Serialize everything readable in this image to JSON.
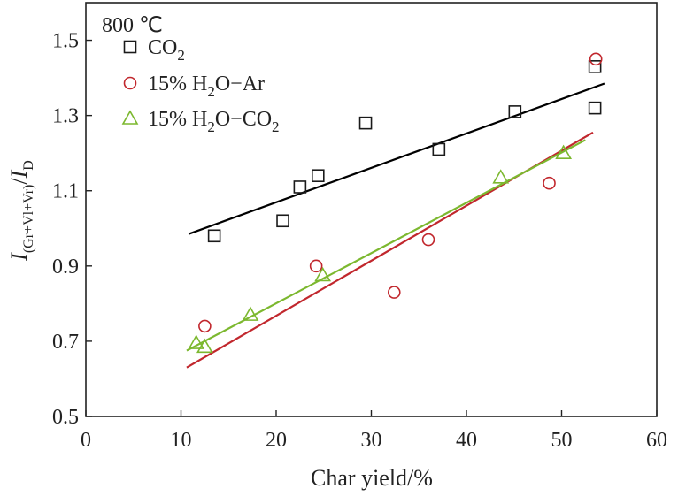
{
  "chart_data": {
    "type": "scatter",
    "annotation": "800 ℃",
    "xlabel": "Char yield/%",
    "ylabel": {
      "main": "I",
      "sub": "(Gr+Vl+Vr)",
      "sep": "/",
      "main2": "I",
      "sub2": "D"
    },
    "xlim": [
      0,
      60
    ],
    "ylim": [
      0.5,
      1.6
    ],
    "xticks": [
      0,
      10,
      20,
      30,
      40,
      50,
      60
    ],
    "yticks": [
      0.5,
      0.7,
      0.9,
      1.1,
      1.3,
      1.5
    ],
    "grid": false,
    "legend_position": "top-left",
    "series": [
      {
        "name": "CO₂",
        "name_parts": {
          "base": "CO",
          "sub": "2",
          "tail": ""
        },
        "marker": "square",
        "color": "#1a1a1a",
        "line_color": "#000000",
        "points": [
          [
            13.5,
            0.98
          ],
          [
            20.7,
            1.02
          ],
          [
            22.5,
            1.11
          ],
          [
            24.4,
            1.14
          ],
          [
            29.4,
            1.28
          ],
          [
            37.1,
            1.21
          ],
          [
            45.1,
            1.31
          ],
          [
            53.5,
            1.32
          ],
          [
            53.5,
            1.43
          ]
        ],
        "fit": [
          [
            10.8,
            0.985
          ],
          [
            54.5,
            1.385
          ]
        ]
      },
      {
        "name": "15% H₂O−Ar",
        "name_parts": {
          "base": "15% H",
          "sub": "2",
          "tail": "O−Ar"
        },
        "marker": "circle",
        "color": "#c1272d",
        "line_color": "#c1272d",
        "points": [
          [
            12.5,
            0.74
          ],
          [
            24.2,
            0.9
          ],
          [
            32.4,
            0.83
          ],
          [
            36.0,
            0.97
          ],
          [
            48.7,
            1.12
          ],
          [
            53.6,
            1.45
          ]
        ],
        "fit": [
          [
            10.6,
            0.63
          ],
          [
            53.3,
            1.255
          ]
        ]
      },
      {
        "name": "15% H₂O−CO₂",
        "name_parts": {
          "base": "15% H",
          "sub": "2",
          "tail": "O−CO",
          "sub2": "2"
        },
        "marker": "triangle",
        "color": "#7cb82f",
        "line_color": "#7cb82f",
        "points": [
          [
            11.6,
            0.695
          ],
          [
            12.5,
            0.685
          ],
          [
            17.3,
            0.77
          ],
          [
            24.9,
            0.875
          ],
          [
            43.6,
            1.135
          ],
          [
            50.2,
            1.2
          ]
        ],
        "fit": [
          [
            10.6,
            0.675
          ],
          [
            52.5,
            1.235
          ]
        ]
      }
    ]
  }
}
